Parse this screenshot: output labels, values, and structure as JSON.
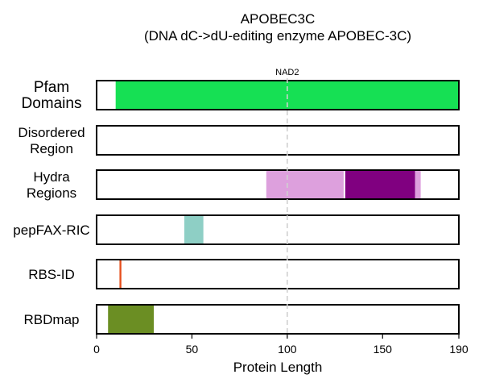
{
  "chart_data": {
    "type": "track",
    "title_line1": "APOBEC3C",
    "title_line2": "(DNA dC->dU-editing enzyme APOBEC-3C)",
    "xlabel": "Protein Length",
    "xlim": [
      0,
      190
    ],
    "ticks": [
      0,
      50,
      100,
      150,
      190
    ],
    "marker": {
      "label": "NAD2",
      "x": 100
    },
    "tracks": [
      {
        "label": [
          "Pfam",
          "Domains"
        ],
        "large": true,
        "segments": [
          {
            "start": 10,
            "end": 190,
            "color": "#16e054"
          }
        ]
      },
      {
        "label": [
          "Disordered",
          "Region"
        ],
        "segments": []
      },
      {
        "label": [
          "Hydra",
          "Regions"
        ],
        "segments": [
          {
            "start": 89,
            "end": 170,
            "color": "#dda0dd"
          },
          {
            "start": 130,
            "end": 167,
            "color": "#800080"
          }
        ]
      },
      {
        "label": [
          "pepFAX-RIC"
        ],
        "segments": [
          {
            "start": 46,
            "end": 56,
            "color": "#8ecfc5"
          }
        ]
      },
      {
        "label": [
          "RBS-ID"
        ],
        "segments": [
          {
            "start": 12,
            "end": 13,
            "color": "#e6501e"
          }
        ]
      },
      {
        "label": [
          "RBDmap"
        ],
        "segments": [
          {
            "start": 6,
            "end": 30,
            "color": "#6b8e23"
          }
        ]
      }
    ]
  }
}
